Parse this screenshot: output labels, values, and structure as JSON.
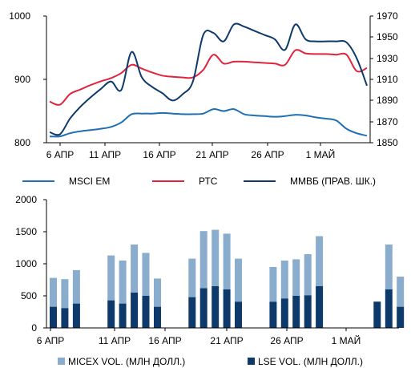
{
  "chart_data": [
    {
      "type": "line",
      "x_categories": [
        "6 АПР",
        "11 АПР",
        "16 АПР",
        "21 АПР",
        "26 АПР",
        "1 МАЙ"
      ],
      "x": [
        "4/5",
        "4/6",
        "4/7",
        "4/8",
        "4/9",
        "4/10",
        "4/11",
        "4/12",
        "4/13",
        "4/14",
        "4/15",
        "4/16",
        "4/17",
        "4/18",
        "4/19",
        "4/20",
        "4/21",
        "4/22",
        "4/23",
        "4/24",
        "4/25",
        "4/26",
        "4/27",
        "4/28",
        "4/29",
        "4/30",
        "5/1",
        "5/2",
        "5/3",
        "5/4",
        "5/5",
        "5/6"
      ],
      "left_axis": {
        "ylim": [
          800,
          1000
        ],
        "ticks": [
          "800",
          "900",
          "1000"
        ]
      },
      "right_axis": {
        "ylim": [
          1850,
          1970
        ],
        "ticks": [
          "1850",
          "1870",
          "1890",
          "1910",
          "1930",
          "1950",
          "1970"
        ]
      },
      "series": [
        {
          "name": "MSCI EM",
          "axis": "left",
          "color": "#1f6fb5",
          "values": [
            810,
            810,
            815,
            818,
            820,
            822,
            825,
            832,
            845,
            846,
            846,
            847,
            846,
            845,
            845,
            846,
            853,
            850,
            853,
            845,
            843,
            842,
            841,
            842,
            844,
            843,
            840,
            838,
            835,
            822,
            815,
            811
          ]
        },
        {
          "name": "РТС",
          "axis": "left",
          "color": "#e0243c",
          "values": [
            865,
            860,
            877,
            884,
            891,
            897,
            902,
            910,
            923,
            917,
            911,
            906,
            904,
            903,
            903,
            915,
            939,
            925,
            928,
            928,
            927,
            926,
            925,
            923,
            946,
            941,
            940,
            940,
            939,
            939,
            913,
            918
          ]
        },
        {
          "name": "ММВБ (ПРАВ. ШК.)",
          "axis": "right",
          "color": "#0d3a6b",
          "values": [
            1860,
            1858,
            1873,
            1884,
            1893,
            1901,
            1908,
            1900,
            1936,
            1912,
            1903,
            1897,
            1890,
            1896,
            1908,
            1952,
            1954,
            1946,
            1962,
            1960,
            1956,
            1952,
            1948,
            1938,
            1962,
            1948,
            1946,
            1946,
            1946,
            1945,
            1930,
            1904
          ]
        }
      ],
      "grid": false,
      "legend_position": "bottom"
    },
    {
      "type": "bar",
      "stacked": true,
      "x_categories": [
        "6 АПР",
        "11 АПР",
        "16 АПР",
        "21 АПР",
        "26 АПР",
        "1 МАЙ"
      ],
      "ylim": [
        0,
        2000
      ],
      "ticks": [
        "0",
        "500",
        "1000",
        "1500",
        "2000"
      ],
      "days": [
        "4/6",
        "4/7",
        "4/8",
        "4/9",
        "4/10",
        "4/11",
        "4/12",
        "4/13",
        "4/14",
        "4/15",
        "4/16",
        "4/17",
        "4/18",
        "4/19",
        "4/20",
        "4/21",
        "4/22",
        "4/23",
        "4/24",
        "4/25",
        "4/26",
        "4/27",
        "4/28",
        "4/29",
        "4/30",
        "5/1",
        "5/2",
        "5/3",
        "5/4",
        "5/5",
        "5/6"
      ],
      "series": [
        {
          "name": "LSE VOL. (МЛН ДОЛЛ.)",
          "color": "#0d3a6b",
          "values": [
            330,
            310,
            380,
            null,
            null,
            430,
            380,
            550,
            500,
            330,
            null,
            null,
            480,
            620,
            650,
            600,
            410,
            null,
            null,
            410,
            460,
            500,
            510,
            650,
            null,
            null,
            null,
            null,
            410,
            600,
            330
          ]
        },
        {
          "name": "MICEX VOL. (МЛН ДОЛЛ.)",
          "color": "#8aaccd",
          "values": [
            450,
            450,
            520,
            null,
            null,
            700,
            670,
            750,
            670,
            440,
            null,
            null,
            600,
            890,
            880,
            870,
            670,
            null,
            null,
            540,
            590,
            570,
            640,
            780,
            null,
            null,
            null,
            null,
            0,
            700,
            470
          ]
        }
      ],
      "grid": false,
      "legend_position": "bottom"
    }
  ]
}
